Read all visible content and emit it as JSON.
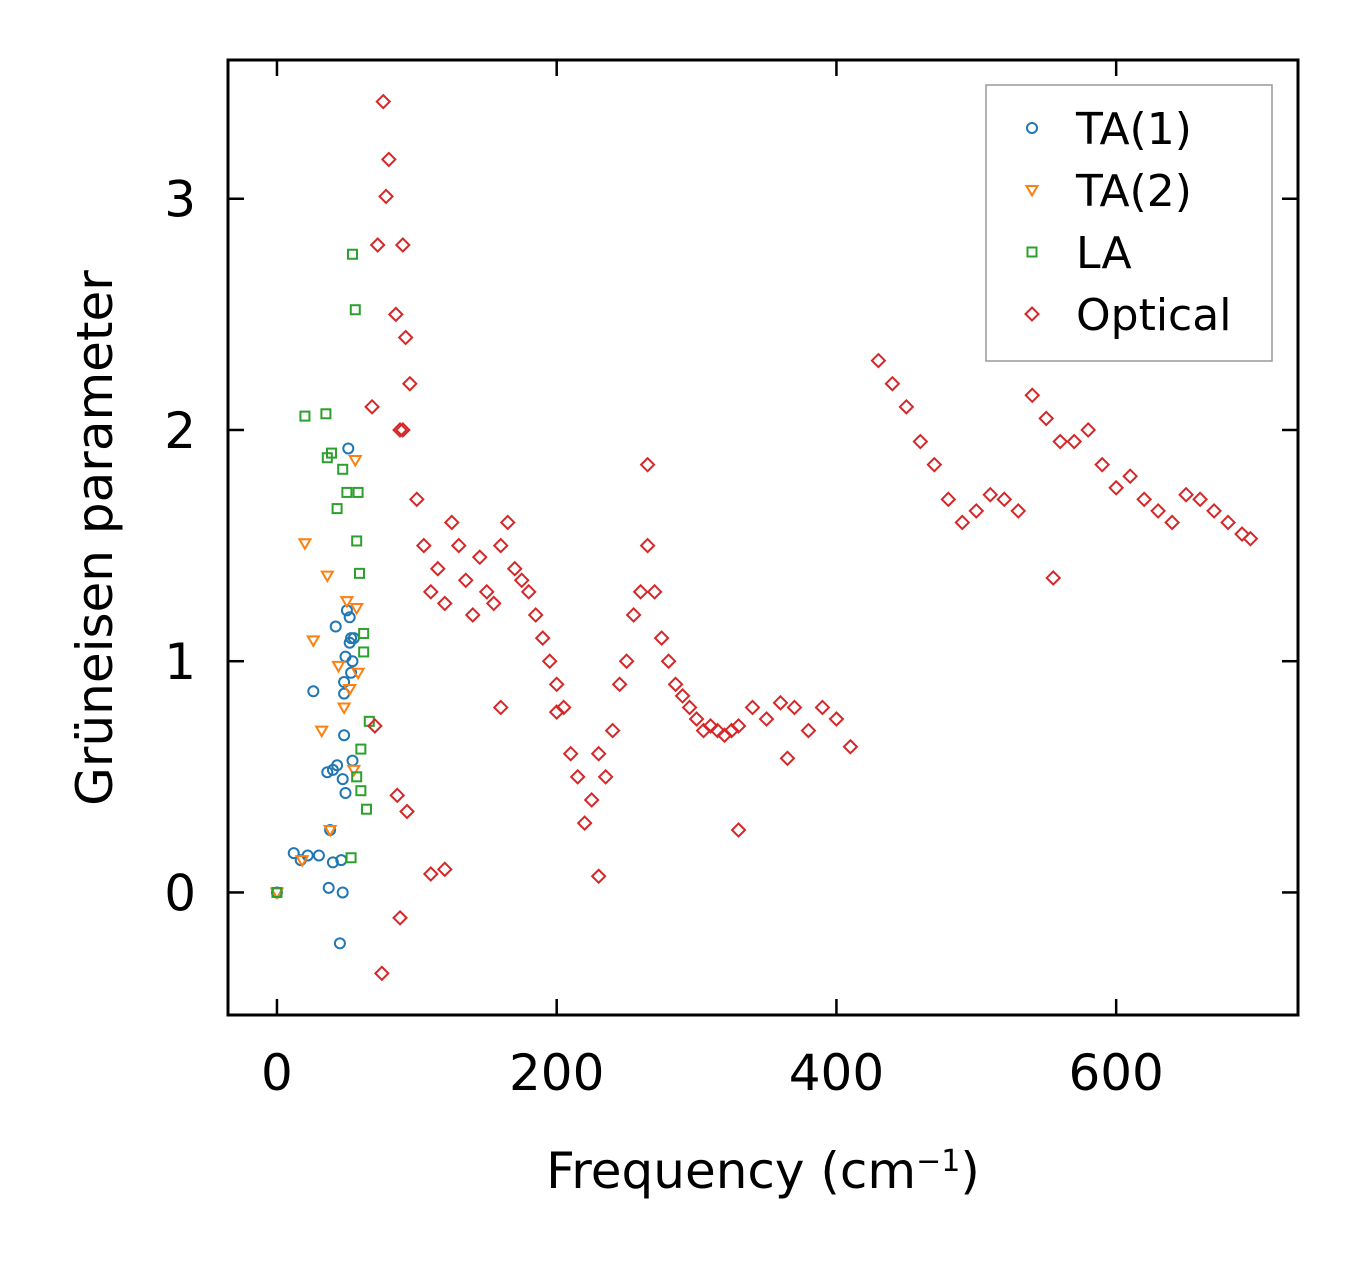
{
  "chart_data": {
    "type": "scatter",
    "title": "",
    "xlabel": "Frequency (cm",
    "xlabel_sup": "−1",
    "xlabel_tail": ")",
    "ylabel": "Grüneisen parameter",
    "xlim": [
      -35,
      730
    ],
    "ylim": [
      -0.53,
      3.6
    ],
    "xticks": [
      0,
      200,
      400,
      600
    ],
    "yticks": [
      0,
      1,
      2,
      3
    ],
    "legend_position": "top-right",
    "grid": false,
    "series": [
      {
        "name": "TA(1)",
        "marker": "circle",
        "color": "#1f77b4",
        "x": [
          0,
          12,
          17,
          22,
          26,
          30,
          36,
          37,
          38,
          40,
          40,
          42,
          43,
          45,
          46,
          47,
          47,
          48,
          48,
          48,
          49,
          49,
          50,
          51,
          52,
          52,
          53,
          53,
          54,
          54,
          55
        ],
        "y": [
          0.0,
          0.17,
          0.14,
          0.16,
          0.87,
          0.16,
          0.52,
          0.02,
          0.27,
          0.53,
          0.13,
          1.15,
          0.55,
          -0.22,
          0.14,
          0.49,
          0.0,
          0.86,
          0.68,
          0.91,
          0.43,
          1.02,
          1.22,
          1.92,
          1.19,
          1.08,
          0.95,
          1.1,
          1.0,
          0.57,
          1.1
        ]
      },
      {
        "name": "TA(2)",
        "marker": "triangle",
        "color": "#ff7f0e",
        "x": [
          0,
          18,
          20,
          26,
          32,
          36,
          38,
          44,
          48,
          50,
          52,
          55,
          56,
          57,
          58
        ],
        "y": [
          0.0,
          0.14,
          1.51,
          1.09,
          0.7,
          1.37,
          0.27,
          0.98,
          0.8,
          1.26,
          0.88,
          0.53,
          1.87,
          1.23,
          0.95
        ]
      },
      {
        "name": "LA",
        "marker": "square",
        "color": "#2ca02c",
        "x": [
          0,
          20,
          35,
          36,
          39,
          43,
          47,
          50,
          53,
          54,
          56,
          57,
          57,
          58,
          59,
          60,
          60,
          62,
          62,
          64,
          66
        ],
        "y": [
          0.0,
          2.06,
          2.07,
          1.88,
          1.9,
          1.66,
          1.83,
          1.73,
          0.15,
          2.76,
          2.52,
          1.52,
          0.5,
          1.73,
          1.38,
          0.62,
          0.44,
          1.12,
          1.04,
          0.36,
          0.74
        ]
      },
      {
        "name": "Optical",
        "marker": "diamond",
        "color": "#d62728",
        "x": [
          76,
          80,
          78,
          90,
          72,
          85,
          92,
          95,
          68,
          88,
          100,
          105,
          110,
          115,
          120,
          125,
          130,
          135,
          140,
          145,
          150,
          155,
          160,
          165,
          170,
          175,
          180,
          185,
          190,
          195,
          200,
          205,
          210,
          215,
          220,
          225,
          230,
          235,
          240,
          245,
          250,
          255,
          260,
          265,
          270,
          275,
          280,
          285,
          290,
          295,
          300,
          305,
          310,
          315,
          320,
          325,
          330,
          340,
          350,
          360,
          370,
          380,
          390,
          400,
          410,
          430,
          440,
          450,
          460,
          470,
          480,
          490,
          500,
          510,
          520,
          530,
          540,
          550,
          560,
          570,
          580,
          590,
          600,
          610,
          620,
          630,
          640,
          650,
          660,
          670,
          680,
          690,
          696,
          75,
          88,
          93,
          120,
          160,
          200,
          230,
          265,
          330,
          365,
          555,
          90,
          86,
          70,
          110
        ],
        "y": [
          3.42,
          3.17,
          3.01,
          2.8,
          2.8,
          2.5,
          2.4,
          2.2,
          2.1,
          2.0,
          1.7,
          1.5,
          1.3,
          1.4,
          1.25,
          1.6,
          1.5,
          1.35,
          1.2,
          1.45,
          1.3,
          1.25,
          1.5,
          1.6,
          1.4,
          1.35,
          1.3,
          1.2,
          1.1,
          1.0,
          0.9,
          0.8,
          0.6,
          0.5,
          0.3,
          0.4,
          0.6,
          0.5,
          0.7,
          0.9,
          1.0,
          1.2,
          1.3,
          1.5,
          1.3,
          1.1,
          1.0,
          0.9,
          0.85,
          0.8,
          0.75,
          0.7,
          0.72,
          0.7,
          0.68,
          0.7,
          0.72,
          0.8,
          0.75,
          0.82,
          0.8,
          0.7,
          0.8,
          0.75,
          0.63,
          2.3,
          2.2,
          2.1,
          1.95,
          1.85,
          1.7,
          1.6,
          1.65,
          1.72,
          1.7,
          1.65,
          2.15,
          2.05,
          1.95,
          1.95,
          2.0,
          1.85,
          1.75,
          1.8,
          1.7,
          1.65,
          1.6,
          1.72,
          1.7,
          1.65,
          1.6,
          1.55,
          1.53,
          -0.35,
          -0.11,
          0.35,
          0.1,
          0.8,
          0.78,
          0.07,
          1.85,
          0.27,
          0.58,
          1.36,
          2.0,
          0.42,
          0.72,
          0.08
        ]
      }
    ]
  }
}
